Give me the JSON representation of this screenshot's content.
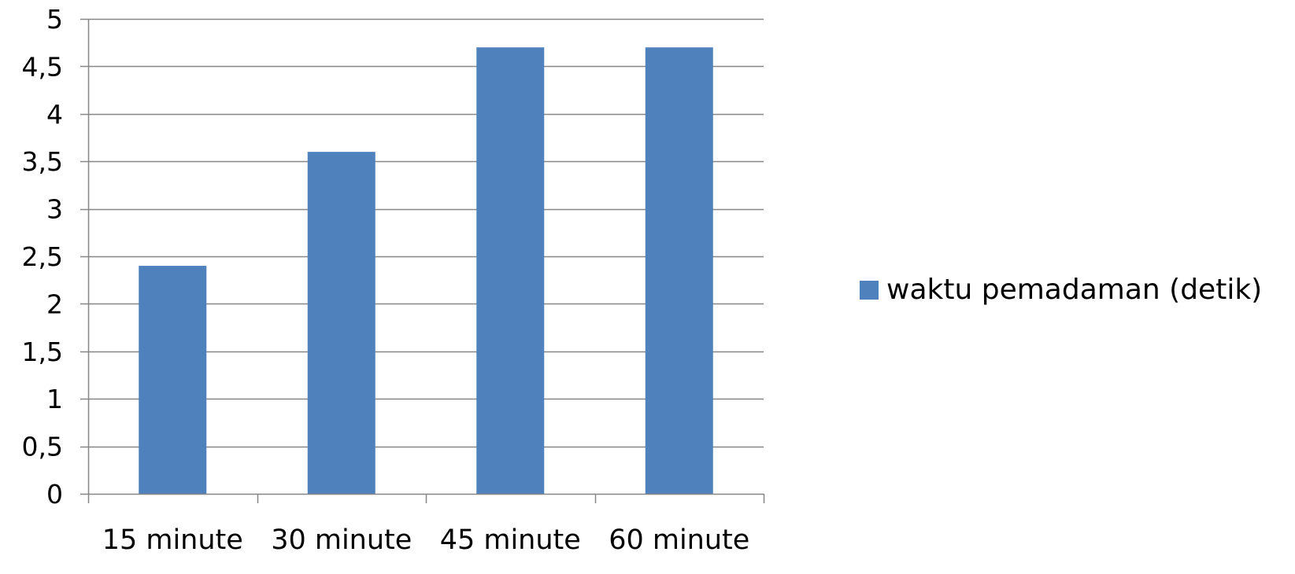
{
  "chart_data": {
    "type": "bar",
    "categories": [
      "15 minute",
      "30 minute",
      "45 minute",
      "60 minute"
    ],
    "series": [
      {
        "name": "waktu pemadaman (detik)",
        "values": [
          2.4,
          3.6,
          4.7,
          4.7
        ],
        "color": "#4F81BD"
      }
    ],
    "ylim": [
      0,
      5
    ],
    "yticks": [
      0,
      0.5,
      1,
      1.5,
      2,
      2.5,
      3,
      3.5,
      4,
      4.5,
      5
    ],
    "ytick_labels": [
      "0",
      "0,5",
      "1",
      "1,5",
      "2",
      "2,5",
      "3",
      "3,5",
      "4",
      "4,5",
      "5"
    ],
    "grid": true,
    "legend_position": "right"
  }
}
